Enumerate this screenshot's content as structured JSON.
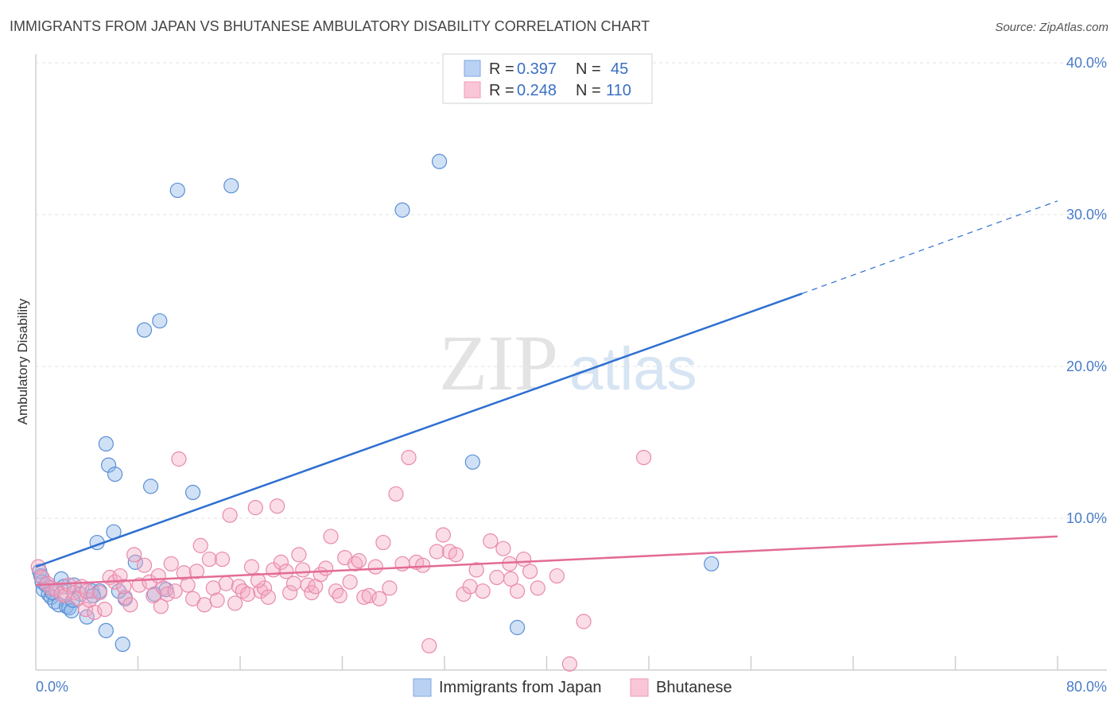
{
  "chart_data": {
    "type": "scatter",
    "title": "IMMIGRANTS FROM JAPAN VS BHUTANESE AMBULATORY DISABILITY CORRELATION CHART",
    "source": "Source: ZipAtlas.com",
    "ylabel": "Ambulatory Disability",
    "xlim": [
      0,
      80
    ],
    "ylim": [
      0,
      40
    ],
    "x_tick_labels": [
      "0.0%",
      "80.0%"
    ],
    "y_tick_labels": [
      "10.0%",
      "20.0%",
      "30.0%",
      "40.0%"
    ],
    "y_tick_values": [
      10,
      20,
      30,
      40
    ],
    "watermark": [
      "ZIP",
      "atlas"
    ],
    "legend_stats": [
      {
        "r_label": "R =",
        "r_value": "0.397",
        "n_label": "N =",
        "n_value": "45"
      },
      {
        "r_label": "R =",
        "r_value": "0.248",
        "n_label": "N =",
        "n_value": "110"
      }
    ],
    "series": [
      {
        "name": "Immigrants from Japan",
        "color": "#8ab4e8",
        "edge": "#5a8fd6",
        "trend_color": "#2e6fd0",
        "trend": {
          "x0": 0,
          "y0": 6.8,
          "x1": 60,
          "y1": 24.8,
          "dash_to_x": 80,
          "dash_to_y": 30.9
        },
        "points": [
          [
            0.3,
            6.5
          ],
          [
            0.5,
            5.8
          ],
          [
            0.6,
            5.3
          ],
          [
            0.8,
            5.6
          ],
          [
            1.0,
            5.0
          ],
          [
            1.2,
            4.8
          ],
          [
            1.5,
            4.5
          ],
          [
            1.8,
            4.3
          ],
          [
            2.0,
            6.0
          ],
          [
            2.2,
            5.5
          ],
          [
            2.4,
            4.2
          ],
          [
            2.6,
            4.1
          ],
          [
            2.8,
            3.9
          ],
          [
            3.0,
            5.6
          ],
          [
            3.5,
            5.0
          ],
          [
            4.0,
            3.5
          ],
          [
            4.4,
            5.2
          ],
          [
            4.8,
            8.4
          ],
          [
            5.0,
            5.2
          ],
          [
            5.5,
            2.6
          ],
          [
            5.5,
            14.9
          ],
          [
            5.7,
            13.5
          ],
          [
            6.2,
            12.9
          ],
          [
            6.1,
            9.1
          ],
          [
            6.8,
            1.7
          ],
          [
            7.0,
            4.7
          ],
          [
            7.8,
            7.1
          ],
          [
            8.5,
            22.4
          ],
          [
            9.0,
            12.1
          ],
          [
            9.3,
            5.0
          ],
          [
            9.7,
            23.0
          ],
          [
            10.2,
            5.3
          ],
          [
            11.1,
            31.6
          ],
          [
            12.3,
            11.7
          ],
          [
            15.3,
            31.9
          ],
          [
            28.7,
            30.3
          ],
          [
            31.6,
            33.5
          ],
          [
            34.2,
            13.7
          ],
          [
            37.7,
            2.8
          ],
          [
            52.9,
            7.0
          ],
          [
            0.4,
            6.2
          ],
          [
            1.3,
            5.1
          ],
          [
            2.9,
            4.6
          ],
          [
            4.5,
            4.9
          ],
          [
            6.5,
            5.2
          ]
        ]
      },
      {
        "name": "Bhutanese",
        "color": "#f4a9c3",
        "edge": "#e88aad",
        "trend_color": "#e36b96",
        "trend": {
          "x0": 0,
          "y0": 5.6,
          "x1": 80,
          "y1": 8.8
        },
        "points": [
          [
            0.2,
            6.8
          ],
          [
            0.5,
            6.1
          ],
          [
            0.9,
            5.7
          ],
          [
            1.2,
            5.4
          ],
          [
            1.6,
            5.3
          ],
          [
            2.0,
            5.0
          ],
          [
            2.3,
            4.9
          ],
          [
            2.6,
            5.6
          ],
          [
            3.0,
            5.1
          ],
          [
            3.3,
            4.7
          ],
          [
            3.6,
            5.5
          ],
          [
            3.9,
            4.0
          ],
          [
            4.2,
            4.6
          ],
          [
            4.6,
            3.8
          ],
          [
            5.0,
            5.1
          ],
          [
            5.4,
            4.0
          ],
          [
            5.8,
            6.1
          ],
          [
            6.2,
            5.8
          ],
          [
            6.6,
            6.2
          ],
          [
            7.0,
            4.8
          ],
          [
            7.4,
            4.3
          ],
          [
            7.7,
            7.6
          ],
          [
            8.1,
            5.6
          ],
          [
            8.5,
            6.9
          ],
          [
            8.9,
            5.8
          ],
          [
            9.2,
            4.9
          ],
          [
            9.6,
            6.2
          ],
          [
            10.0,
            5.4
          ],
          [
            10.3,
            5.0
          ],
          [
            10.6,
            7.0
          ],
          [
            10.9,
            5.2
          ],
          [
            11.2,
            13.9
          ],
          [
            11.6,
            6.4
          ],
          [
            11.9,
            5.6
          ],
          [
            12.3,
            4.7
          ],
          [
            12.6,
            6.5
          ],
          [
            12.9,
            8.2
          ],
          [
            13.2,
            4.3
          ],
          [
            13.6,
            7.3
          ],
          [
            13.9,
            5.4
          ],
          [
            14.2,
            4.6
          ],
          [
            14.6,
            7.3
          ],
          [
            14.9,
            5.7
          ],
          [
            15.2,
            10.2
          ],
          [
            15.6,
            4.4
          ],
          [
            15.9,
            5.5
          ],
          [
            16.2,
            5.2
          ],
          [
            16.6,
            5.0
          ],
          [
            16.9,
            6.8
          ],
          [
            17.2,
            10.7
          ],
          [
            17.6,
            5.2
          ],
          [
            17.9,
            5.4
          ],
          [
            18.2,
            4.8
          ],
          [
            18.6,
            6.6
          ],
          [
            18.9,
            10.8
          ],
          [
            19.2,
            7.1
          ],
          [
            19.6,
            6.5
          ],
          [
            19.9,
            5.1
          ],
          [
            20.2,
            5.7
          ],
          [
            20.6,
            7.6
          ],
          [
            20.9,
            6.6
          ],
          [
            21.3,
            5.6
          ],
          [
            21.6,
            5.1
          ],
          [
            21.9,
            5.5
          ],
          [
            22.3,
            6.3
          ],
          [
            22.7,
            6.7
          ],
          [
            23.1,
            8.8
          ],
          [
            23.5,
            5.2
          ],
          [
            23.8,
            4.9
          ],
          [
            24.2,
            7.4
          ],
          [
            24.6,
            5.8
          ],
          [
            25.0,
            7.0
          ],
          [
            25.3,
            7.2
          ],
          [
            25.7,
            4.8
          ],
          [
            26.1,
            4.9
          ],
          [
            26.6,
            6.8
          ],
          [
            27.2,
            8.4
          ],
          [
            27.7,
            5.4
          ],
          [
            28.2,
            11.6
          ],
          [
            28.7,
            7.0
          ],
          [
            29.2,
            14.0
          ],
          [
            29.8,
            7.1
          ],
          [
            30.3,
            6.9
          ],
          [
            30.8,
            1.6
          ],
          [
            31.4,
            7.8
          ],
          [
            31.9,
            8.9
          ],
          [
            32.4,
            7.8
          ],
          [
            32.9,
            7.6
          ],
          [
            33.5,
            5.0
          ],
          [
            34.0,
            5.5
          ],
          [
            34.5,
            6.6
          ],
          [
            35.0,
            5.2
          ],
          [
            35.6,
            8.5
          ],
          [
            36.1,
            6.1
          ],
          [
            36.6,
            8.0
          ],
          [
            37.1,
            7.0
          ],
          [
            37.7,
            5.2
          ],
          [
            38.2,
            7.3
          ],
          [
            38.7,
            6.5
          ],
          [
            39.3,
            5.4
          ],
          [
            40.8,
            6.2
          ],
          [
            41.8,
            0.4
          ],
          [
            42.9,
            3.2
          ],
          [
            47.6,
            14.0
          ],
          [
            6.9,
            5.5
          ],
          [
            9.8,
            4.2
          ],
          [
            17.4,
            5.9
          ],
          [
            26.9,
            4.7
          ],
          [
            37.2,
            6.0
          ],
          [
            4.0,
            5.2
          ]
        ]
      }
    ]
  }
}
